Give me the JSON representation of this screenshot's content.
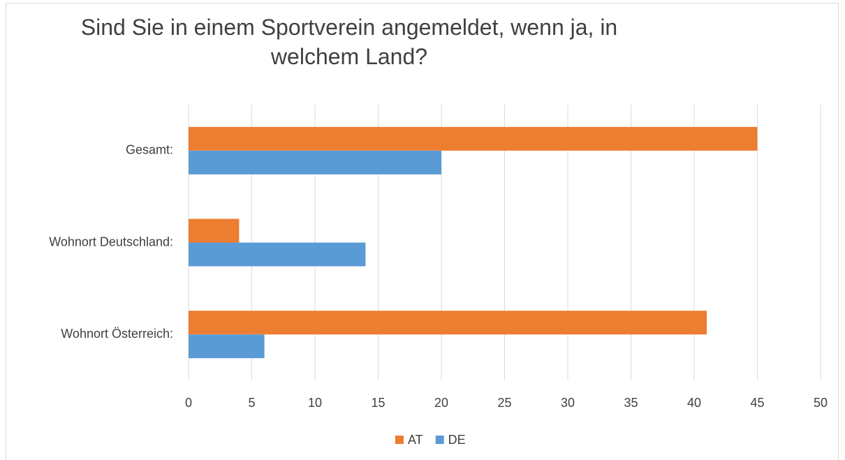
{
  "chart_data": {
    "type": "bar",
    "orientation": "horizontal",
    "title": "Sind Sie in einem Sportverein angemeldet, wenn ja, in welchem Land?",
    "categories": [
      "Gesamt:",
      "Wohnort Deutschland:",
      "Wohnort Österreich:"
    ],
    "series": [
      {
        "name": "AT",
        "color": "#ed7d31",
        "values": [
          45,
          4,
          41
        ]
      },
      {
        "name": "DE",
        "color": "#5b9bd5",
        "values": [
          20,
          14,
          6
        ]
      }
    ],
    "xlim": [
      0,
      50
    ],
    "xticks": [
      0,
      5,
      10,
      15,
      20,
      25,
      30,
      35,
      40,
      45,
      50
    ],
    "grid": true,
    "legend": "bottom"
  }
}
